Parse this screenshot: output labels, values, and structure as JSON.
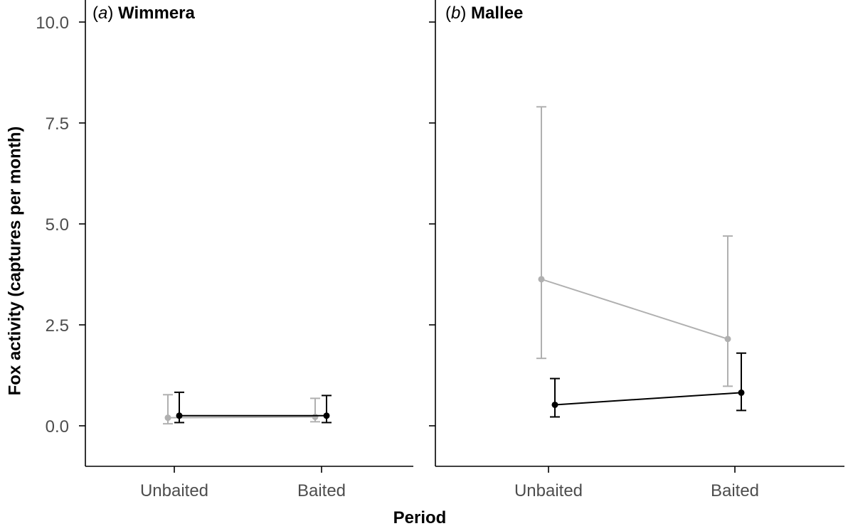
{
  "chart_data": {
    "type": "line",
    "xlabel": "Period",
    "ylabel": "Fox activity (captures per month)",
    "ylim": [
      -0.9,
      10.3
    ],
    "yticks": [
      "0.0",
      "2.5",
      "5.0",
      "7.5",
      "10.0"
    ],
    "ytick_values": [
      0,
      2.5,
      5,
      7.5,
      10
    ],
    "categories": [
      "Unbaited",
      "Baited"
    ],
    "grid": false,
    "legend": "none",
    "colors": {
      "grey": "#b0b0b0",
      "black": "#000000"
    },
    "panels": [
      {
        "label_letter": "a",
        "label_name": "Wimmera",
        "series": [
          {
            "color": "grey",
            "values": [
              0.2,
              0.22
            ],
            "lower": [
              0.05,
              0.1
            ],
            "upper": [
              0.77,
              0.68
            ]
          },
          {
            "color": "black",
            "values": [
              0.25,
              0.25
            ],
            "lower": [
              0.08,
              0.08
            ],
            "upper": [
              0.83,
              0.75
            ]
          }
        ]
      },
      {
        "label_letter": "b",
        "label_name": "Mallee",
        "series": [
          {
            "color": "grey",
            "values": [
              3.63,
              2.15
            ],
            "lower": [
              1.67,
              0.98
            ],
            "upper": [
              7.9,
              4.7
            ]
          },
          {
            "color": "black",
            "values": [
              0.52,
              0.82
            ],
            "lower": [
              0.22,
              0.38
            ],
            "upper": [
              1.17,
              1.8
            ]
          }
        ]
      }
    ]
  }
}
